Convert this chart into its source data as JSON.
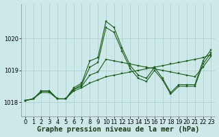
{
  "background_color": "#cce8e8",
  "grid_color": "#aacccc",
  "line_color": "#1a5c1a",
  "xlabel": "Graphe pression niveau de la mer (hPa)",
  "xlabel_fontsize": 7.5,
  "tick_fontsize": 6,
  "ylim": [
    1017.55,
    1021.1
  ],
  "xlim": [
    -0.5,
    23.5
  ],
  "yticks": [
    1018,
    1019,
    1020
  ],
  "xticks": [
    0,
    1,
    2,
    3,
    4,
    5,
    6,
    7,
    8,
    9,
    10,
    11,
    12,
    13,
    14,
    15,
    16,
    17,
    18,
    19,
    20,
    21,
    22,
    23
  ],
  "series": [
    [
      1018.05,
      1018.1,
      1018.35,
      1018.35,
      1018.1,
      1018.1,
      1018.45,
      1018.6,
      1019.3,
      1019.4,
      1020.55,
      1020.35,
      1019.7,
      1019.15,
      1018.85,
      1018.75,
      1019.1,
      1018.75,
      1018.3,
      1018.55,
      1018.55,
      1018.55,
      1019.3,
      1019.65
    ],
    [
      1018.05,
      1018.1,
      1018.35,
      1018.35,
      1018.1,
      1018.1,
      1018.4,
      1018.55,
      1019.1,
      1019.25,
      1020.35,
      1020.2,
      1019.6,
      1019.05,
      1018.75,
      1018.65,
      1019.0,
      1018.7,
      1018.25,
      1018.5,
      1018.5,
      1018.5,
      1019.2,
      1019.55
    ],
    [
      1018.05,
      1018.1,
      1018.35,
      1018.35,
      1018.1,
      1018.1,
      1018.4,
      1018.5,
      1018.85,
      1018.95,
      1019.35,
      1019.3,
      1019.25,
      1019.2,
      1019.15,
      1019.1,
      1019.05,
      1019.0,
      1018.95,
      1018.9,
      1018.85,
      1018.8,
      1019.1,
      1019.45
    ],
    [
      1018.05,
      1018.1,
      1018.3,
      1018.3,
      1018.1,
      1018.1,
      1018.35,
      1018.45,
      1018.6,
      1018.7,
      1018.8,
      1018.85,
      1018.9,
      1018.95,
      1019.0,
      1019.05,
      1019.1,
      1019.15,
      1019.2,
      1019.25,
      1019.3,
      1019.35,
      1019.4,
      1019.5
    ]
  ]
}
